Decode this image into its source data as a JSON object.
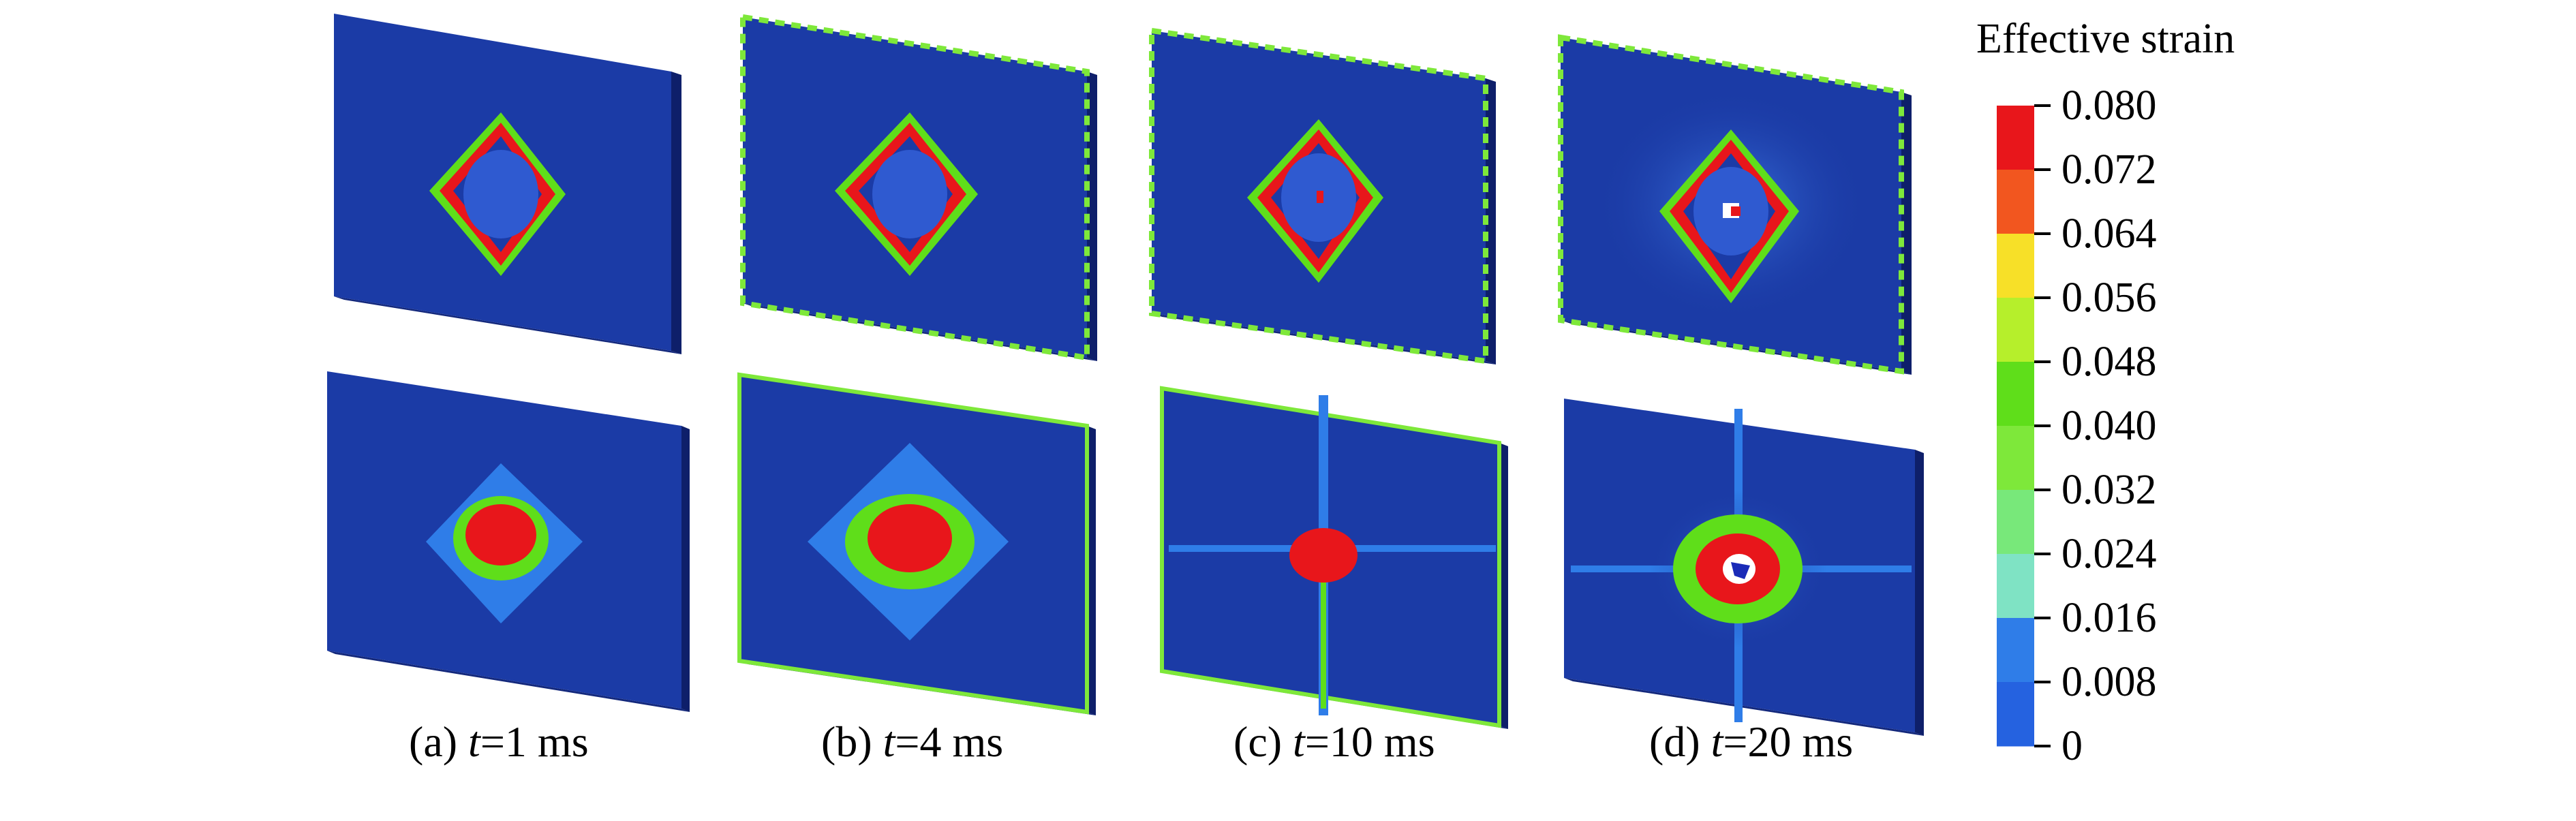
{
  "legend": {
    "title": "Effective strain",
    "ticks": [
      "0.080",
      "0.072",
      "0.064",
      "0.056",
      "0.048",
      "0.040",
      "0.032",
      "0.024",
      "0.016",
      "0.008",
      "0"
    ],
    "colors": [
      "#e8161b",
      "#f2561f",
      "#f7e028",
      "#b6ef2b",
      "#5fde1a",
      "#7ee83a",
      "#78e87a",
      "#7fe3c4",
      "#2f7de8",
      "#2562e0"
    ],
    "base_color": "#1a35a8"
  },
  "panels": [
    {
      "id": "a",
      "label_prefix": "(a) ",
      "t_var": "t",
      "label_suffix": "=1 ms"
    },
    {
      "id": "b",
      "label_prefix": "(b) ",
      "t_var": "t",
      "label_suffix": "=4 ms"
    },
    {
      "id": "c",
      "label_prefix": "(c) ",
      "t_var": "t",
      "label_suffix": "=10 ms"
    },
    {
      "id": "d",
      "label_prefix": "(d) ",
      "t_var": "t",
      "label_suffix": "=20 ms"
    }
  ],
  "colors": {
    "plate_face": "#1b3ba6",
    "plate_edge": "#0e1f6a",
    "strain_high": "#e8161b",
    "strain_mid": "#3bd24a",
    "strain_low": "#2f7de8"
  }
}
